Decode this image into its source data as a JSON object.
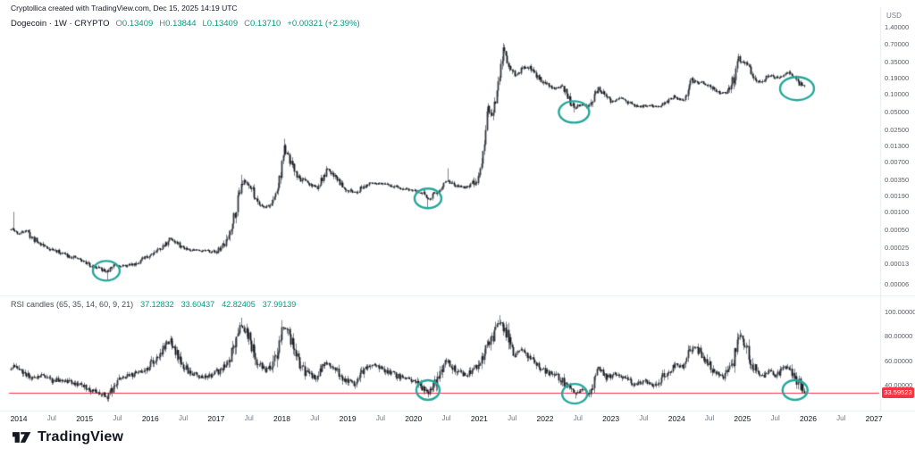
{
  "header": {
    "attribution": "Cryptollica created with TradingView.com, Dec 15, 2025 14:19 UTC",
    "symbol_line": {
      "symbol": "Dogecoin · 1W · CRYPTO",
      "o_label": "O",
      "o_value": "0.13409",
      "h_label": "H",
      "h_value": "0.13844",
      "l_label": "L",
      "l_value": "0.13409",
      "c_label": "C",
      "c_value": "0.13710",
      "change": "+0.00321 (+2.39%)"
    },
    "currency_label": "USD"
  },
  "rsi_legend": {
    "title": "RSI candles (65, 35, 14, 60, 9, 21)",
    "value_1": "37.12832",
    "value_2": "33.60437",
    "value_3": "42.82405",
    "value_4": "37.99139"
  },
  "footer": {
    "brand": "TradingView"
  },
  "colors": {
    "annotation_teal": "#26a69a",
    "positive_green": "#089981",
    "level_red": "#f23645",
    "text_dark": "#131722",
    "text_gray": "#787b86",
    "candle_body": "#1e2127",
    "candle_wick": "#5c6068"
  },
  "chart_data": [
    {
      "type": "candlestick",
      "title": "Dogecoin · 1W · CRYPTO",
      "symbol": "Dogecoin",
      "timeframe": "1W",
      "exchange": "CRYPTO",
      "y_scale": "log",
      "y_unit": "USD",
      "legend_position": "top-left",
      "grid": false,
      "last": {
        "open": 0.13409,
        "high": 0.13844,
        "low": 0.13409,
        "close": 0.1371,
        "change_abs": 0.00321,
        "change_pct": 2.39
      },
      "y_axis": {
        "top_value": 1.4,
        "bottom_value": 6e-05,
        "ticks": [
          [
            1.4,
            "1.40000"
          ],
          [
            0.7,
            "0.70000"
          ],
          [
            0.35,
            "0.35000"
          ],
          [
            0.19,
            "0.19000"
          ],
          [
            0.1,
            "0.10000"
          ],
          [
            0.05,
            "0.05000"
          ],
          [
            0.025,
            "0.02500"
          ],
          [
            0.013,
            "0.01300"
          ],
          [
            0.007,
            "0.00700"
          ],
          [
            0.0035,
            "0.00350"
          ],
          [
            0.0019,
            "0.00190"
          ],
          [
            0.001,
            "0.00100"
          ],
          [
            0.0005,
            "0.00050"
          ],
          [
            0.00025,
            "0.00025"
          ],
          [
            0.00013,
            "0.00013"
          ],
          [
            6e-05,
            "0.00006"
          ]
        ]
      },
      "x_axis": {
        "t_min": 2013.85,
        "t_max": 2027.08,
        "ticks": [
          [
            2014,
            "2014",
            "year"
          ],
          [
            2014.5,
            "Jul",
            "month"
          ],
          [
            2015,
            "2015",
            "year"
          ],
          [
            2015.5,
            "Jul",
            "month"
          ],
          [
            2016,
            "2016",
            "year"
          ],
          [
            2016.5,
            "Jul",
            "month"
          ],
          [
            2017,
            "2017",
            "year"
          ],
          [
            2017.5,
            "Jul",
            "month"
          ],
          [
            2018,
            "2018",
            "year"
          ],
          [
            2018.5,
            "Jul",
            "month"
          ],
          [
            2019,
            "2019",
            "year"
          ],
          [
            2019.5,
            "Jul",
            "month"
          ],
          [
            2020,
            "2020",
            "year"
          ],
          [
            2020.5,
            "Jul",
            "month"
          ],
          [
            2021,
            "2021",
            "year"
          ],
          [
            2021.5,
            "Jul",
            "month"
          ],
          [
            2022,
            "2022",
            "year"
          ],
          [
            2022.5,
            "Jul",
            "month"
          ],
          [
            2023,
            "2023",
            "year"
          ],
          [
            2023.5,
            "Jul",
            "month"
          ],
          [
            2024,
            "2024",
            "year"
          ],
          [
            2024.5,
            "Jul",
            "month"
          ],
          [
            2025,
            "2025",
            "year"
          ],
          [
            2025.5,
            "Jul",
            "month"
          ],
          [
            2026,
            "2026",
            "year"
          ],
          [
            2026.5,
            "Jul",
            "month"
          ],
          [
            2027,
            "2027",
            "year"
          ]
        ]
      },
      "points": [
        [
          2013.9,
          0.0005
        ],
        [
          2014.0,
          0.00042
        ],
        [
          2014.1,
          0.0005
        ],
        [
          2014.2,
          0.00036
        ],
        [
          2014.3,
          0.0003
        ],
        [
          2014.45,
          0.00024
        ],
        [
          2014.6,
          0.00021
        ],
        [
          2014.75,
          0.00018
        ],
        [
          2014.9,
          0.00016
        ],
        [
          2015.05,
          0.00013
        ],
        [
          2015.2,
          0.00011
        ],
        [
          2015.34,
          9.5e-05
        ],
        [
          2015.45,
          0.00013
        ],
        [
          2015.6,
          0.00012
        ],
        [
          2015.75,
          0.00013
        ],
        [
          2015.9,
          0.00016
        ],
        [
          2016.05,
          0.00021
        ],
        [
          2016.2,
          0.00026
        ],
        [
          2016.3,
          0.00036
        ],
        [
          2016.45,
          0.00026
        ],
        [
          2016.6,
          0.00023
        ],
        [
          2016.8,
          0.00022
        ],
        [
          2017.0,
          0.00021
        ],
        [
          2017.15,
          0.0003
        ],
        [
          2017.3,
          0.0012
        ],
        [
          2017.38,
          0.0033
        ],
        [
          2017.5,
          0.003
        ],
        [
          2017.6,
          0.0017
        ],
        [
          2017.72,
          0.0012
        ],
        [
          2017.85,
          0.00135
        ],
        [
          2017.95,
          0.0031
        ],
        [
          2018.03,
          0.012
        ],
        [
          2018.12,
          0.007
        ],
        [
          2018.25,
          0.0038
        ],
        [
          2018.4,
          0.003
        ],
        [
          2018.55,
          0.0026
        ],
        [
          2018.68,
          0.0052
        ],
        [
          2018.8,
          0.0042
        ],
        [
          2018.95,
          0.0026
        ],
        [
          2019.1,
          0.0021
        ],
        [
          2019.25,
          0.0028
        ],
        [
          2019.4,
          0.0031
        ],
        [
          2019.55,
          0.0029
        ],
        [
          2019.7,
          0.0027
        ],
        [
          2019.85,
          0.00245
        ],
        [
          2020.0,
          0.0023
        ],
        [
          2020.15,
          0.002
        ],
        [
          2020.22,
          0.00165
        ],
        [
          2020.35,
          0.00225
        ],
        [
          2020.52,
          0.0033
        ],
        [
          2020.65,
          0.0027
        ],
        [
          2020.8,
          0.00265
        ],
        [
          2020.95,
          0.0033
        ],
        [
          2021.05,
          0.0078
        ],
        [
          2021.12,
          0.052
        ],
        [
          2021.2,
          0.05
        ],
        [
          2021.28,
          0.12
        ],
        [
          2021.36,
          0.56
        ],
        [
          2021.45,
          0.31
        ],
        [
          2021.55,
          0.2
        ],
        [
          2021.65,
          0.27
        ],
        [
          2021.75,
          0.29
        ],
        [
          2021.85,
          0.22
        ],
        [
          2021.95,
          0.17
        ],
        [
          2022.05,
          0.14
        ],
        [
          2022.15,
          0.125
        ],
        [
          2022.25,
          0.135
        ],
        [
          2022.35,
          0.085
        ],
        [
          2022.44,
          0.058
        ],
        [
          2022.55,
          0.068
        ],
        [
          2022.67,
          0.06
        ],
        [
          2022.8,
          0.125
        ],
        [
          2022.9,
          0.095
        ],
        [
          2023.0,
          0.075
        ],
        [
          2023.12,
          0.086
        ],
        [
          2023.25,
          0.072
        ],
        [
          2023.4,
          0.061
        ],
        [
          2023.55,
          0.065
        ],
        [
          2023.7,
          0.061
        ],
        [
          2023.85,
          0.075
        ],
        [
          2023.95,
          0.092
        ],
        [
          2024.05,
          0.081
        ],
        [
          2024.15,
          0.09
        ],
        [
          2024.22,
          0.165
        ],
        [
          2024.32,
          0.155
        ],
        [
          2024.42,
          0.16
        ],
        [
          2024.55,
          0.122
        ],
        [
          2024.68,
          0.102
        ],
        [
          2024.8,
          0.115
        ],
        [
          2024.88,
          0.21
        ],
        [
          2024.93,
          0.41
        ],
        [
          2025.0,
          0.33
        ],
        [
          2025.06,
          0.36
        ],
        [
          2025.14,
          0.24
        ],
        [
          2025.22,
          0.17
        ],
        [
          2025.3,
          0.165
        ],
        [
          2025.4,
          0.215
        ],
        [
          2025.5,
          0.19
        ],
        [
          2025.6,
          0.21
        ],
        [
          2025.7,
          0.235
        ],
        [
          2025.78,
          0.195
        ],
        [
          2025.85,
          0.155
        ],
        [
          2025.92,
          0.142
        ],
        [
          2025.95,
          0.1371
        ]
      ],
      "spikes": [
        [
          2013.92,
          "h",
          0.001
        ],
        [
          2015.34,
          "l",
          7e-05
        ],
        [
          2017.38,
          "h",
          0.0043
        ],
        [
          2018.03,
          "h",
          0.0175
        ],
        [
          2020.21,
          "l",
          0.00115
        ],
        [
          2020.52,
          "h",
          0.0055
        ],
        [
          2021.36,
          "h",
          0.738
        ],
        [
          2022.44,
          "l",
          0.049
        ],
        [
          2024.93,
          "h",
          0.48
        ],
        [
          2025.95,
          "l",
          0.13
        ]
      ],
      "annotations_ellipses": [
        [
          2015.33,
          0.0001,
          15,
          11
        ],
        [
          2020.22,
          0.0017,
          15,
          11
        ],
        [
          2022.44,
          0.05,
          17,
          12
        ],
        [
          2025.83,
          0.125,
          19,
          13
        ]
      ]
    },
    {
      "type": "candlestick",
      "title": "RSI candles (65, 35, 14, 60, 9, 21)",
      "values": [
        37.12832,
        33.60437,
        42.82405,
        37.99139
      ],
      "grid": false,
      "y_axis": {
        "ticks": [
          [
            100,
            "100.00000"
          ],
          [
            80,
            "80.00000"
          ],
          [
            60,
            "60.00000"
          ],
          [
            40,
            "40.00000"
          ]
        ]
      },
      "level_line": {
        "value": 33.59523,
        "label": "33.59523",
        "color": "#f23645"
      },
      "points": [
        [
          2013.9,
          55
        ],
        [
          2014.05,
          50
        ],
        [
          2014.2,
          46
        ],
        [
          2014.35,
          48
        ],
        [
          2014.5,
          43
        ],
        [
          2014.65,
          45
        ],
        [
          2014.8,
          42
        ],
        [
          2014.95,
          40
        ],
        [
          2015.1,
          36
        ],
        [
          2015.25,
          33
        ],
        [
          2015.35,
          30
        ],
        [
          2015.5,
          44
        ],
        [
          2015.65,
          47
        ],
        [
          2015.8,
          50
        ],
        [
          2015.95,
          54
        ],
        [
          2016.1,
          62
        ],
        [
          2016.22,
          72
        ],
        [
          2016.3,
          76
        ],
        [
          2016.45,
          58
        ],
        [
          2016.6,
          50
        ],
        [
          2016.75,
          47
        ],
        [
          2016.9,
          48
        ],
        [
          2017.05,
          52
        ],
        [
          2017.2,
          62
        ],
        [
          2017.38,
          90
        ],
        [
          2017.5,
          78
        ],
        [
          2017.62,
          60
        ],
        [
          2017.75,
          52
        ],
        [
          2017.88,
          58
        ],
        [
          2018.0,
          88
        ],
        [
          2018.1,
          80
        ],
        [
          2018.22,
          62
        ],
        [
          2018.35,
          50
        ],
        [
          2018.5,
          46
        ],
        [
          2018.65,
          58
        ],
        [
          2018.8,
          54
        ],
        [
          2018.95,
          44
        ],
        [
          2019.1,
          41
        ],
        [
          2019.25,
          52
        ],
        [
          2019.4,
          58
        ],
        [
          2019.55,
          53
        ],
        [
          2019.7,
          49
        ],
        [
          2019.85,
          45
        ],
        [
          2020.0,
          44
        ],
        [
          2020.15,
          37
        ],
        [
          2020.22,
          33
        ],
        [
          2020.35,
          43
        ],
        [
          2020.5,
          60
        ],
        [
          2020.65,
          52
        ],
        [
          2020.8,
          48
        ],
        [
          2020.95,
          54
        ],
        [
          2021.1,
          70
        ],
        [
          2021.2,
          78
        ],
        [
          2021.3,
          92
        ],
        [
          2021.42,
          80
        ],
        [
          2021.52,
          64
        ],
        [
          2021.65,
          70
        ],
        [
          2021.78,
          62
        ],
        [
          2021.9,
          55
        ],
        [
          2022.05,
          50
        ],
        [
          2022.2,
          47
        ],
        [
          2022.32,
          40
        ],
        [
          2022.45,
          32
        ],
        [
          2022.55,
          36
        ],
        [
          2022.67,
          34
        ],
        [
          2022.8,
          55
        ],
        [
          2022.92,
          46
        ],
        [
          2023.05,
          49
        ],
        [
          2023.2,
          45
        ],
        [
          2023.35,
          41
        ],
        [
          2023.5,
          43
        ],
        [
          2023.65,
          40
        ],
        [
          2023.8,
          48
        ],
        [
          2023.95,
          55
        ],
        [
          2024.1,
          57
        ],
        [
          2024.25,
          73
        ],
        [
          2024.4,
          64
        ],
        [
          2024.55,
          51
        ],
        [
          2024.7,
          47
        ],
        [
          2024.85,
          58
        ],
        [
          2024.95,
          80
        ],
        [
          2025.05,
          74
        ],
        [
          2025.15,
          56
        ],
        [
          2025.25,
          46
        ],
        [
          2025.4,
          51
        ],
        [
          2025.5,
          48
        ],
        [
          2025.6,
          52
        ],
        [
          2025.7,
          55
        ],
        [
          2025.8,
          46
        ],
        [
          2025.88,
          40
        ],
        [
          2025.95,
          34
        ]
      ],
      "spikes": [
        [
          2016.3,
          "h",
          80
        ],
        [
          2017.38,
          "h",
          95
        ],
        [
          2018.0,
          "h",
          93
        ],
        [
          2021.3,
          "h",
          97
        ],
        [
          2024.95,
          "h",
          85
        ],
        [
          2015.35,
          "l",
          27
        ],
        [
          2020.22,
          "l",
          30
        ],
        [
          2022.45,
          "l",
          29
        ],
        [
          2025.95,
          "l",
          32
        ]
      ],
      "annotations_ellipses": [
        [
          2020.22,
          36,
          13,
          11
        ],
        [
          2022.45,
          33,
          14,
          11
        ],
        [
          2025.8,
          36,
          14,
          11
        ]
      ]
    }
  ]
}
